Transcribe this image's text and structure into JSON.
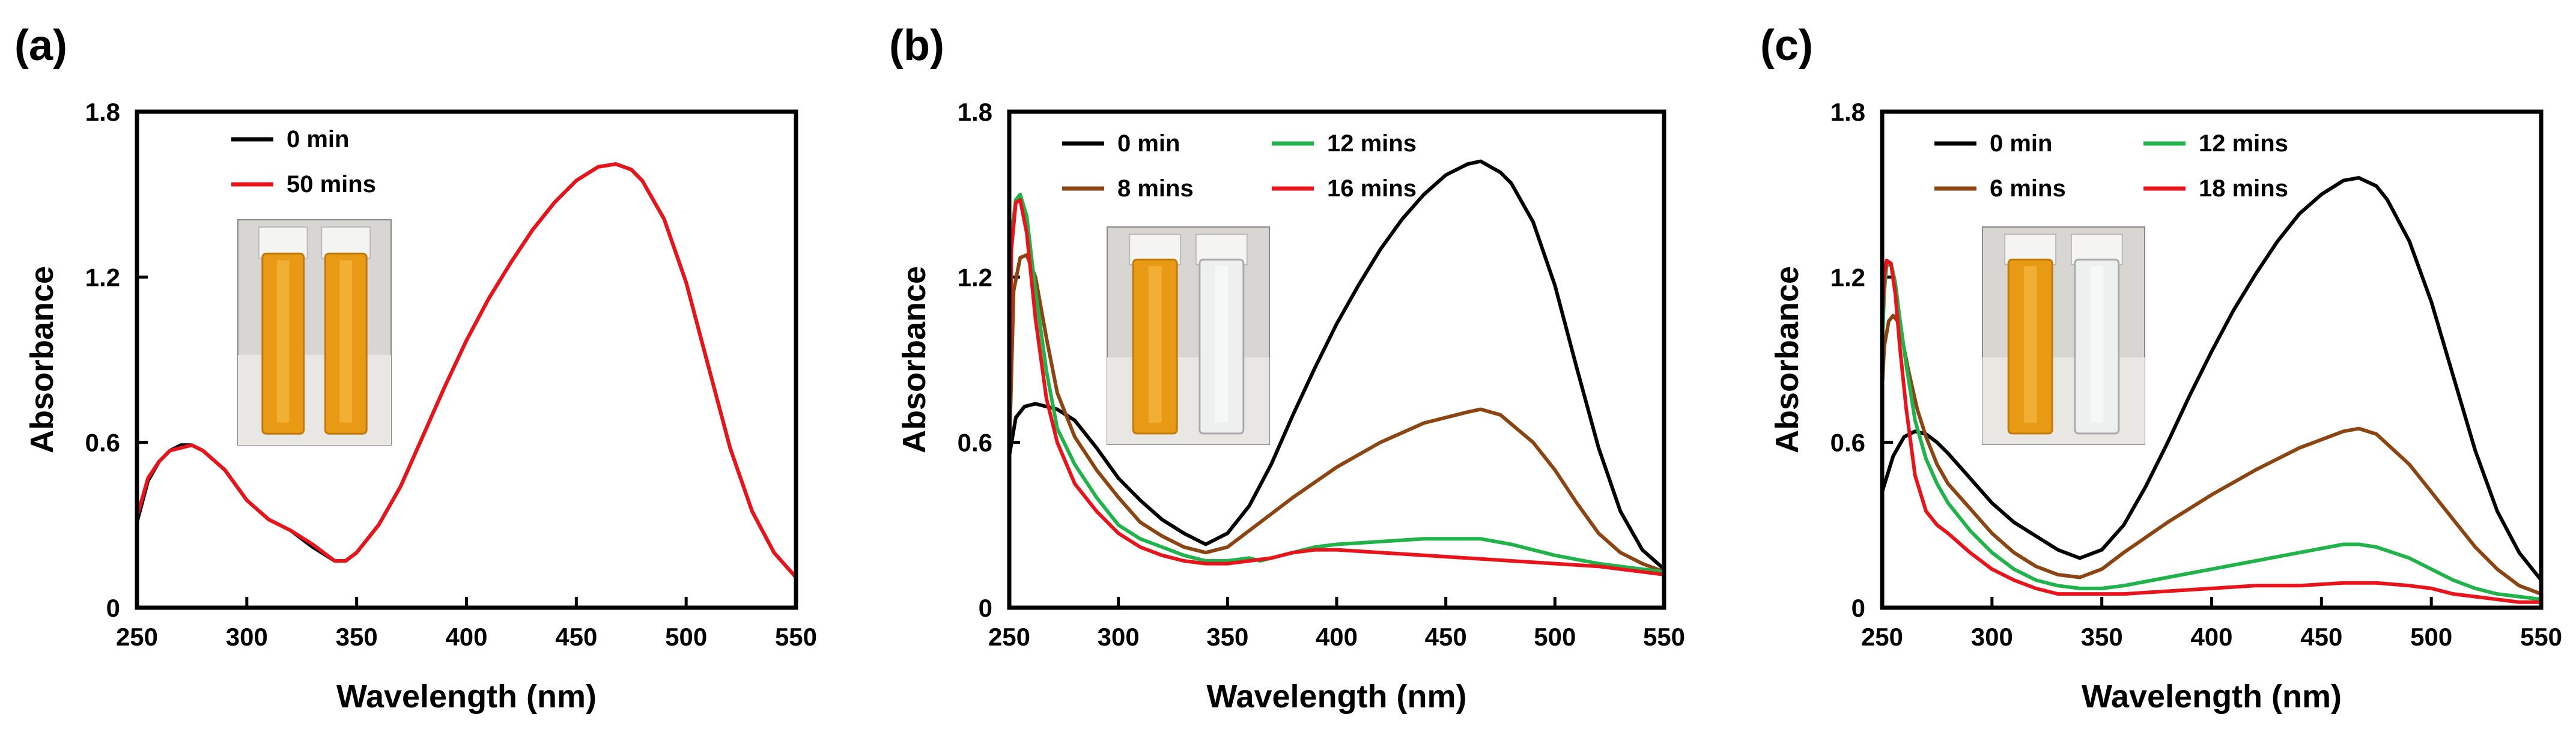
{
  "chart_data": [
    {
      "type": "line",
      "panel_label": "(a)",
      "xlabel": "Wavelength (nm)",
      "ylabel": "Absorbance",
      "xlim": [
        250,
        550
      ],
      "ylim": [
        0,
        1.8
      ],
      "xticks": [
        250,
        300,
        350,
        400,
        450,
        500,
        550
      ],
      "yticks": [
        0,
        0.6,
        1.2,
        1.8
      ],
      "ytick_labels": [
        "0",
        "0.6",
        "1.2",
        "1.8"
      ],
      "legend_position": "top-left",
      "legend_columns": 1,
      "inset": {
        "description": "two cuvettes",
        "colors": [
          "orange",
          "orange"
        ]
      },
      "series": [
        {
          "name": "0 min",
          "color": "#000000",
          "x": [
            250,
            255,
            260,
            265,
            270,
            275,
            280,
            290,
            300,
            310,
            320,
            330,
            340,
            345,
            350,
            360,
            370,
            380,
            390,
            400,
            410,
            420,
            430,
            440,
            450,
            460,
            468,
            475,
            480,
            490,
            500,
            510,
            520,
            530,
            540,
            550
          ],
          "y": [
            0.31,
            0.46,
            0.53,
            0.57,
            0.59,
            0.59,
            0.57,
            0.5,
            0.39,
            0.32,
            0.28,
            0.22,
            0.17,
            0.17,
            0.2,
            0.3,
            0.44,
            0.62,
            0.8,
            0.97,
            1.12,
            1.25,
            1.37,
            1.47,
            1.55,
            1.6,
            1.61,
            1.59,
            1.55,
            1.41,
            1.18,
            0.88,
            0.58,
            0.35,
            0.2,
            0.11
          ]
        },
        {
          "name": "50 mins",
          "color": "#e8141c",
          "x": [
            250,
            255,
            260,
            265,
            270,
            275,
            280,
            290,
            300,
            310,
            320,
            330,
            340,
            345,
            350,
            360,
            370,
            380,
            390,
            400,
            410,
            420,
            430,
            440,
            450,
            460,
            468,
            475,
            480,
            490,
            500,
            510,
            520,
            530,
            540,
            550
          ],
          "y": [
            0.33,
            0.47,
            0.53,
            0.57,
            0.58,
            0.59,
            0.57,
            0.5,
            0.39,
            0.32,
            0.28,
            0.23,
            0.17,
            0.17,
            0.2,
            0.3,
            0.44,
            0.62,
            0.8,
            0.97,
            1.12,
            1.25,
            1.37,
            1.47,
            1.55,
            1.6,
            1.61,
            1.59,
            1.55,
            1.41,
            1.18,
            0.88,
            0.58,
            0.35,
            0.2,
            0.11
          ]
        }
      ]
    },
    {
      "type": "line",
      "panel_label": "(b)",
      "xlabel": "Wavelength (nm)",
      "ylabel": "Absorbance",
      "xlim": [
        250,
        550
      ],
      "ylim": [
        0,
        1.8
      ],
      "xticks": [
        250,
        300,
        350,
        400,
        450,
        500,
        550
      ],
      "yticks": [
        0,
        0.6,
        1.2,
        1.8
      ],
      "ytick_labels": [
        "0",
        "0.6",
        "1.2",
        "1.8"
      ],
      "legend_position": "top-left",
      "legend_columns": 2,
      "inset": {
        "description": "two cuvettes",
        "colors": [
          "orange",
          "clear"
        ]
      },
      "series": [
        {
          "name": "0 min",
          "color": "#000000",
          "x": [
            250,
            253,
            257,
            262,
            267,
            272,
            280,
            290,
            300,
            310,
            320,
            330,
            340,
            350,
            360,
            370,
            380,
            390,
            400,
            410,
            420,
            430,
            440,
            450,
            460,
            466,
            475,
            480,
            490,
            500,
            510,
            520,
            530,
            540,
            550
          ],
          "y": [
            0.55,
            0.69,
            0.73,
            0.74,
            0.73,
            0.72,
            0.68,
            0.58,
            0.47,
            0.39,
            0.32,
            0.27,
            0.23,
            0.27,
            0.37,
            0.52,
            0.7,
            0.87,
            1.03,
            1.17,
            1.3,
            1.41,
            1.5,
            1.57,
            1.61,
            1.62,
            1.58,
            1.54,
            1.4,
            1.17,
            0.87,
            0.58,
            0.35,
            0.21,
            0.14
          ]
        },
        {
          "name": "8 mins",
          "color": "#8b4513",
          "x": [
            250,
            252,
            255,
            258,
            262,
            267,
            272,
            280,
            290,
            300,
            310,
            320,
            330,
            340,
            350,
            360,
            380,
            400,
            420,
            440,
            460,
            466,
            475,
            490,
            500,
            510,
            520,
            530,
            540,
            550
          ],
          "y": [
            0.55,
            1.15,
            1.27,
            1.28,
            1.2,
            0.98,
            0.78,
            0.62,
            0.5,
            0.4,
            0.31,
            0.26,
            0.22,
            0.2,
            0.22,
            0.28,
            0.4,
            0.51,
            0.6,
            0.67,
            0.71,
            0.72,
            0.7,
            0.6,
            0.5,
            0.38,
            0.27,
            0.2,
            0.16,
            0.13
          ]
        },
        {
          "name": "12 mins",
          "color": "#22b24c",
          "x": [
            250,
            251,
            253,
            255,
            258,
            262,
            267,
            272,
            280,
            290,
            300,
            310,
            320,
            330,
            340,
            350,
            360,
            365,
            370,
            380,
            390,
            400,
            420,
            440,
            460,
            466,
            480,
            500,
            520,
            540,
            550
          ],
          "y": [
            0.58,
            1.35,
            1.48,
            1.5,
            1.42,
            1.15,
            0.86,
            0.65,
            0.52,
            0.4,
            0.3,
            0.25,
            0.22,
            0.19,
            0.17,
            0.17,
            0.18,
            0.17,
            0.18,
            0.2,
            0.22,
            0.23,
            0.24,
            0.25,
            0.25,
            0.25,
            0.23,
            0.19,
            0.16,
            0.14,
            0.13
          ]
        },
        {
          "name": "16 mins",
          "color": "#e8141c",
          "x": [
            250,
            251,
            253,
            255,
            258,
            262,
            267,
            272,
            280,
            290,
            300,
            310,
            320,
            330,
            340,
            350,
            360,
            370,
            380,
            390,
            400,
            420,
            440,
            460,
            480,
            500,
            520,
            540,
            550
          ],
          "y": [
            0.61,
            1.3,
            1.47,
            1.48,
            1.36,
            1.05,
            0.76,
            0.6,
            0.45,
            0.35,
            0.27,
            0.22,
            0.19,
            0.17,
            0.16,
            0.16,
            0.17,
            0.18,
            0.2,
            0.21,
            0.21,
            0.2,
            0.19,
            0.18,
            0.17,
            0.16,
            0.15,
            0.13,
            0.12
          ]
        }
      ]
    },
    {
      "type": "line",
      "panel_label": "(c)",
      "xlabel": "Wavelength (nm)",
      "ylabel": "Absorbance",
      "xlim": [
        250,
        550
      ],
      "ylim": [
        0,
        1.8
      ],
      "xticks": [
        250,
        300,
        350,
        400,
        450,
        500,
        550
      ],
      "yticks": [
        0,
        0.6,
        1.2,
        1.8
      ],
      "ytick_labels": [
        "0",
        "0.6",
        "1.2",
        "1.8"
      ],
      "legend_position": "top-left",
      "legend_columns": 2,
      "inset": {
        "description": "two cuvettes",
        "colors": [
          "orange",
          "clear"
        ]
      },
      "series": [
        {
          "name": "0 min",
          "color": "#000000",
          "x": [
            250,
            255,
            260,
            265,
            270,
            275,
            280,
            290,
            300,
            310,
            320,
            330,
            340,
            350,
            360,
            370,
            380,
            390,
            400,
            410,
            420,
            430,
            440,
            450,
            460,
            467,
            475,
            480,
            490,
            500,
            510,
            520,
            530,
            540,
            550
          ],
          "y": [
            0.42,
            0.55,
            0.62,
            0.64,
            0.63,
            0.6,
            0.56,
            0.47,
            0.38,
            0.31,
            0.26,
            0.21,
            0.18,
            0.21,
            0.3,
            0.44,
            0.6,
            0.77,
            0.93,
            1.08,
            1.21,
            1.33,
            1.43,
            1.5,
            1.55,
            1.56,
            1.53,
            1.48,
            1.33,
            1.11,
            0.84,
            0.57,
            0.35,
            0.2,
            0.1
          ]
        },
        {
          "name": "6 mins",
          "color": "#8b4513",
          "x": [
            250,
            251,
            253,
            255,
            257,
            259,
            262,
            266,
            270,
            275,
            280,
            290,
            300,
            310,
            320,
            330,
            340,
            350,
            360,
            380,
            400,
            420,
            440,
            460,
            467,
            475,
            490,
            500,
            510,
            520,
            530,
            540,
            550
          ],
          "y": [
            0.8,
            0.95,
            1.04,
            1.06,
            1.04,
            0.98,
            0.86,
            0.72,
            0.62,
            0.52,
            0.45,
            0.36,
            0.27,
            0.2,
            0.15,
            0.12,
            0.11,
            0.14,
            0.2,
            0.31,
            0.41,
            0.5,
            0.58,
            0.64,
            0.65,
            0.63,
            0.52,
            0.42,
            0.32,
            0.22,
            0.14,
            0.08,
            0.05
          ]
        },
        {
          "name": "12 mins",
          "color": "#22b24c",
          "x": [
            250,
            251,
            252,
            254,
            256,
            258,
            261,
            265,
            270,
            275,
            280,
            290,
            300,
            310,
            320,
            330,
            340,
            350,
            360,
            380,
            400,
            420,
            440,
            460,
            467,
            475,
            490,
            500,
            510,
            520,
            530,
            540,
            550
          ],
          "y": [
            0.95,
            1.15,
            1.24,
            1.25,
            1.18,
            1.05,
            0.88,
            0.68,
            0.54,
            0.45,
            0.38,
            0.28,
            0.2,
            0.14,
            0.1,
            0.08,
            0.07,
            0.07,
            0.08,
            0.11,
            0.14,
            0.17,
            0.2,
            0.23,
            0.23,
            0.22,
            0.18,
            0.14,
            0.1,
            0.07,
            0.05,
            0.04,
            0.03
          ]
        },
        {
          "name": "18 mins",
          "color": "#e8141c",
          "x": [
            250,
            251,
            252,
            254,
            256,
            258,
            261,
            265,
            270,
            275,
            280,
            290,
            300,
            310,
            320,
            330,
            340,
            350,
            360,
            380,
            400,
            420,
            440,
            460,
            467,
            475,
            490,
            500,
            510,
            520,
            530,
            540,
            550
          ],
          "y": [
            1.05,
            1.2,
            1.26,
            1.25,
            1.14,
            0.95,
            0.72,
            0.48,
            0.35,
            0.3,
            0.27,
            0.2,
            0.14,
            0.1,
            0.07,
            0.05,
            0.05,
            0.05,
            0.05,
            0.06,
            0.07,
            0.08,
            0.08,
            0.09,
            0.09,
            0.09,
            0.08,
            0.07,
            0.05,
            0.04,
            0.03,
            0.02,
            0.02
          ]
        }
      ]
    }
  ]
}
